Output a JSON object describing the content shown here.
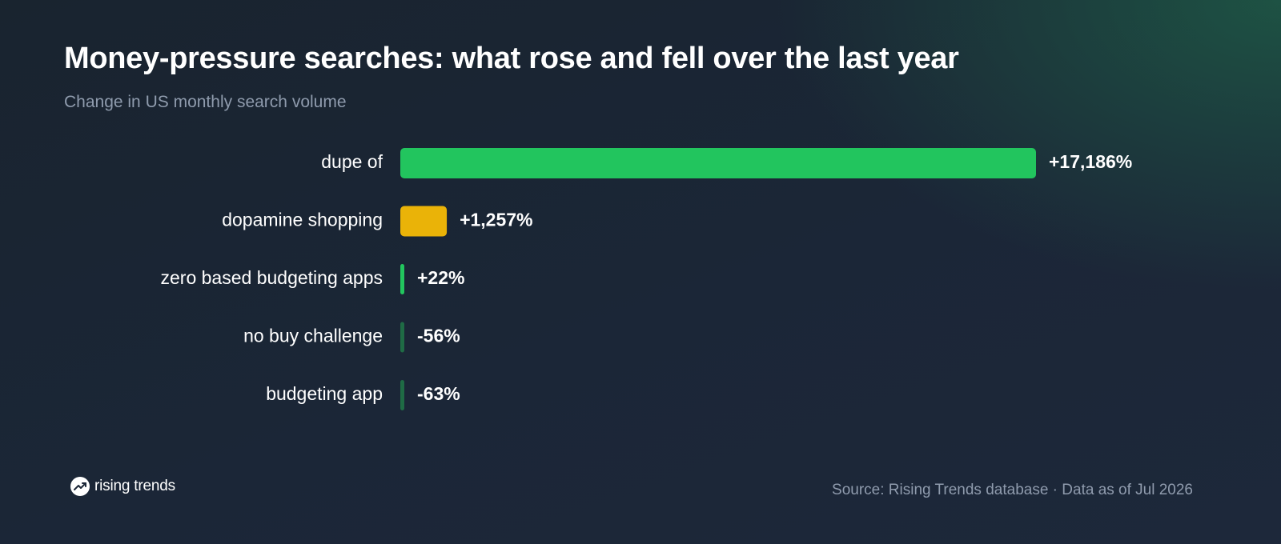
{
  "header": {
    "title": "Money-pressure searches: what rose and fell over the last year",
    "subtitle": "Change in US monthly search volume"
  },
  "footer": {
    "logo_text": "rising trends",
    "source": "Source: Rising Trends database · Data as of Jul 2026"
  },
  "colors": {
    "rise_strong": "#22c55e",
    "rise_mid": "#eab308",
    "fall": "#1f6b45"
  },
  "chart_data": {
    "type": "bar",
    "orientation": "horizontal",
    "categories": [
      "dupe of",
      "dopamine shopping",
      "zero based budgeting apps",
      "no buy challenge",
      "budgeting app"
    ],
    "values": [
      17186,
      1257,
      22,
      -56,
      -63
    ],
    "value_labels": [
      "+17,186%",
      "+1,257%",
      "+22%",
      "-56%",
      "-63%"
    ],
    "bar_colors": [
      "#22c55e",
      "#eab308",
      "#22c55e",
      "#1f6b45",
      "#1f6b45"
    ],
    "unit": "%",
    "grid": false,
    "legend": "none"
  }
}
